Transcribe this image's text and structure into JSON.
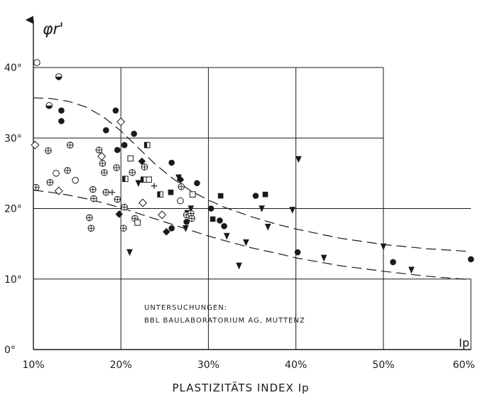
{
  "chart_data": {
    "type": "scatter",
    "title": "",
    "xlabel": "PLASTIZITÄTS INDEX Ip",
    "ylabel": "φr'",
    "xlim": [
      10,
      60
    ],
    "ylim": [
      0,
      40
    ],
    "x_ticks": [
      10,
      20,
      30,
      40,
      50,
      60
    ],
    "x_tick_labels": [
      "10%",
      "20%",
      "30%",
      "40%",
      "50%",
      "60%"
    ],
    "y_ticks": [
      0,
      10,
      20,
      30,
      40
    ],
    "y_tick_labels": [
      "0°",
      "10°",
      "20°",
      "30°",
      "40°"
    ],
    "x_axis_end_label": "Ip",
    "grid": true,
    "annotation_lines": [
      "UNTERSUCHUNGEN:",
      "BBL BAULABORATORIUM AG, MUTTENZ"
    ],
    "envelope_curves": [
      {
        "style": "dashed",
        "points": [
          [
            10,
            35.7
          ],
          [
            12,
            35.6
          ],
          [
            14,
            35.2
          ],
          [
            16,
            34.4
          ],
          [
            18,
            33.0
          ],
          [
            20,
            31.0
          ],
          [
            22,
            28.6
          ],
          [
            24,
            26.2
          ],
          [
            26,
            24.2
          ],
          [
            28,
            22.5
          ],
          [
            30,
            21.2
          ],
          [
            32,
            20.1
          ],
          [
            35,
            18.8
          ],
          [
            38,
            17.7
          ],
          [
            40,
            17.1
          ],
          [
            45,
            15.8
          ],
          [
            50,
            14.9
          ],
          [
            55,
            14.3
          ],
          [
            60,
            13.9
          ]
        ]
      },
      {
        "style": "dashed",
        "points": [
          [
            10,
            22.6
          ],
          [
            12,
            22.3
          ],
          [
            14,
            21.9
          ],
          [
            16,
            21.4
          ],
          [
            18,
            20.8
          ],
          [
            20,
            20.1
          ],
          [
            22,
            19.3
          ],
          [
            24,
            18.5
          ],
          [
            26,
            17.7
          ],
          [
            28,
            16.9
          ],
          [
            30,
            16.1
          ],
          [
            32,
            15.4
          ],
          [
            35,
            14.4
          ],
          [
            38,
            13.6
          ],
          [
            40,
            13.0
          ],
          [
            45,
            11.9
          ],
          [
            50,
            11.1
          ],
          [
            55,
            10.4
          ],
          [
            60,
            9.9
          ]
        ]
      }
    ],
    "series": [
      {
        "marker": "filled-circle",
        "points": [
          [
            13.2,
            33.9
          ],
          [
            13.2,
            32.4
          ],
          [
            18.3,
            31.1
          ],
          [
            19.4,
            33.9
          ],
          [
            19.6,
            28.3
          ],
          [
            20.4,
            29.0
          ],
          [
            21.5,
            30.6
          ],
          [
            25.8,
            26.5
          ],
          [
            25.8,
            17.2
          ],
          [
            27.5,
            18.1
          ],
          [
            28.7,
            23.6
          ],
          [
            30.3,
            20.0
          ],
          [
            31.3,
            18.3
          ],
          [
            31.8,
            17.5
          ],
          [
            35.4,
            21.8
          ],
          [
            40.2,
            13.8
          ],
          [
            51.1,
            12.4
          ],
          [
            60.0,
            12.8
          ]
        ]
      },
      {
        "marker": "filled-triangle-down",
        "points": [
          [
            21.0,
            13.8
          ],
          [
            22.0,
            23.6
          ],
          [
            26.6,
            24.4
          ],
          [
            27.4,
            17.2
          ],
          [
            28.0,
            20.0
          ],
          [
            32.1,
            16.1
          ],
          [
            33.5,
            11.9
          ],
          [
            34.3,
            15.2
          ],
          [
            36.1,
            20.0
          ],
          [
            36.8,
            17.4
          ],
          [
            39.6,
            19.8
          ],
          [
            40.3,
            27.0
          ],
          [
            43.2,
            13.0
          ],
          [
            50.0,
            14.6
          ],
          [
            53.2,
            11.3
          ]
        ]
      },
      {
        "marker": "filled-square",
        "points": [
          [
            25.7,
            22.3
          ],
          [
            27.6,
            19.4
          ],
          [
            30.5,
            18.5
          ],
          [
            31.4,
            21.8
          ],
          [
            36.5,
            22.0
          ]
        ]
      },
      {
        "marker": "filled-diamond",
        "points": [
          [
            19.8,
            19.2
          ],
          [
            22.4,
            26.7
          ],
          [
            25.2,
            16.7
          ],
          [
            26.8,
            24.1
          ]
        ]
      },
      {
        "marker": "open-circle",
        "points": [
          [
            10.4,
            40.7
          ],
          [
            12.6,
            25.0
          ],
          [
            14.8,
            24.0
          ],
          [
            26.8,
            21.1
          ]
        ]
      },
      {
        "marker": "crossed-circle",
        "points": [
          [
            10.3,
            23.0
          ],
          [
            11.7,
            28.2
          ],
          [
            11.9,
            23.7
          ],
          [
            14.2,
            29.0
          ],
          [
            13.9,
            25.4
          ],
          [
            16.4,
            18.7
          ],
          [
            16.6,
            17.2
          ],
          [
            16.8,
            22.7
          ],
          [
            16.9,
            21.4
          ],
          [
            17.5,
            28.3
          ],
          [
            17.9,
            26.4
          ],
          [
            18.1,
            25.1
          ],
          [
            18.3,
            22.3
          ],
          [
            19.5,
            25.8
          ],
          [
            19.6,
            21.3
          ],
          [
            20.3,
            17.2
          ],
          [
            20.4,
            20.2
          ],
          [
            21.3,
            25.1
          ],
          [
            21.6,
            18.6
          ],
          [
            22.7,
            25.9
          ],
          [
            26.9,
            23.1
          ],
          [
            27.5,
            19.1
          ],
          [
            28.0,
            19.3
          ],
          [
            28.1,
            18.6
          ]
        ]
      },
      {
        "marker": "open-diamond",
        "points": [
          [
            10.2,
            29.0
          ],
          [
            12.9,
            22.5
          ],
          [
            17.8,
            27.4
          ],
          [
            20.0,
            32.3
          ],
          [
            22.5,
            20.8
          ],
          [
            24.7,
            19.1
          ]
        ]
      },
      {
        "marker": "open-square",
        "points": [
          [
            21.1,
            27.1
          ],
          [
            21.9,
            18.0
          ],
          [
            23.2,
            24.1
          ],
          [
            28.2,
            22.0
          ]
        ]
      },
      {
        "marker": "half-filled-square",
        "points": [
          [
            20.5,
            24.2
          ],
          [
            22.6,
            24.1
          ],
          [
            23.0,
            29.0
          ],
          [
            24.5,
            22.0
          ]
        ]
      },
      {
        "marker": "plus",
        "points": [
          [
            19.0,
            22.3
          ],
          [
            23.8,
            23.2
          ]
        ]
      },
      {
        "marker": "half-filled-circle",
        "points": [
          [
            11.8,
            34.6
          ],
          [
            12.9,
            38.7
          ]
        ]
      }
    ]
  }
}
